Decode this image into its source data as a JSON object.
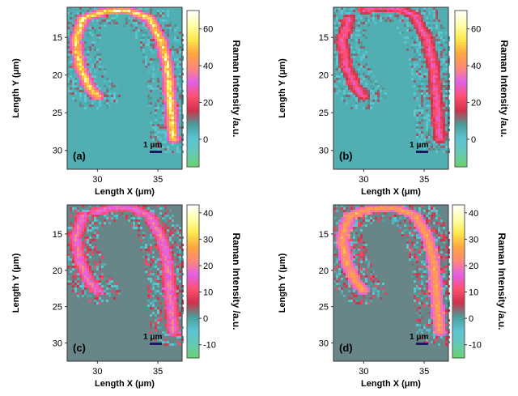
{
  "chart_data": [
    {
      "type": "heatmap",
      "panel": "(a)",
      "xlabel": "Length X (μm)",
      "ylabel": "Length Y (μm)",
      "colorbar_label": "Raman Intensity /a.u.",
      "x_ticks": [
        30,
        35
      ],
      "y_ticks": [
        15,
        20,
        25,
        30
      ],
      "colorbar_ticks": [
        0,
        20,
        40,
        60
      ],
      "xlim": [
        27.5,
        37
      ],
      "ylim": [
        32.5,
        11
      ],
      "clim": [
        -15,
        70
      ],
      "scale_bar": "1 μm",
      "feature": "U-shaped (hook) band, bright on left arm",
      "left_arm": [
        [
          28.8,
          12.5
        ],
        [
          28.2,
          15.5
        ],
        [
          28.6,
          19
        ],
        [
          29.3,
          21.5
        ],
        [
          30.0,
          22.8
        ]
      ],
      "top_arc": [
        [
          28.8,
          12.5
        ],
        [
          30.5,
          11.6
        ],
        [
          32.5,
          11.4
        ],
        [
          34.3,
          12.5
        ]
      ],
      "right_arm": [
        [
          34.3,
          12.5
        ],
        [
          35.3,
          15.5
        ],
        [
          35.8,
          19
        ],
        [
          36.0,
          23
        ],
        [
          36.2,
          27
        ],
        [
          36.3,
          28.5
        ]
      ],
      "peak": 70,
      "band_level": 25,
      "background": 5
    },
    {
      "type": "heatmap",
      "panel": "(b)",
      "xlabel": "Length X (μm)",
      "ylabel": "Length Y (μm)",
      "colorbar_label": "Raman Intensity /a.u.",
      "x_ticks": [
        30,
        35
      ],
      "y_ticks": [
        15,
        20,
        25,
        30
      ],
      "colorbar_ticks": [
        0,
        20,
        40,
        60
      ],
      "xlim": [
        27.5,
        37
      ],
      "ylim": [
        32.5,
        11
      ],
      "clim": [
        -15,
        70
      ],
      "scale_bar": "1 μm",
      "feature": "weak U-shaped outline, bright spot at top and bottom-right tip",
      "left_arm": [
        [
          28.8,
          12.5
        ],
        [
          28.2,
          15.5
        ],
        [
          28.6,
          19
        ],
        [
          29.3,
          21.5
        ],
        [
          30.0,
          22.8
        ]
      ],
      "top_arc": [
        [
          30.0,
          11.4
        ],
        [
          31.5,
          11.0
        ],
        [
          33.0,
          11.2
        ],
        [
          34.3,
          12.2
        ]
      ],
      "right_arm": [
        [
          34.3,
          12.5
        ],
        [
          35.3,
          15.5
        ],
        [
          35.8,
          19
        ],
        [
          36.0,
          23
        ],
        [
          36.2,
          27
        ],
        [
          36.3,
          28.5
        ]
      ],
      "peak": 35,
      "band_level": 12,
      "background": 5
    },
    {
      "type": "heatmap",
      "panel": "(c)",
      "xlabel": "Length X (μm)",
      "ylabel": "Length Y (μm)",
      "colorbar_label": "Raman Intensity /a.u.",
      "x_ticks": [
        30,
        35
      ],
      "y_ticks": [
        15,
        20,
        25,
        30
      ],
      "colorbar_ticks": [
        -10,
        0,
        10,
        20,
        30,
        40
      ],
      "xlim": [
        27.5,
        37
      ],
      "ylim": [
        32.5,
        11
      ],
      "clim": [
        -15,
        43
      ],
      "scale_bar": "1 μm",
      "feature": "faint U-shaped outline, strong band at top",
      "left_arm": [
        [
          28.8,
          12.5
        ],
        [
          28.2,
          15.5
        ],
        [
          28.6,
          19
        ],
        [
          29.3,
          21.5
        ],
        [
          30.0,
          22.8
        ]
      ],
      "top_arc": [
        [
          29.8,
          12.0
        ],
        [
          31.5,
          11.3
        ],
        [
          33.0,
          11.5
        ],
        [
          34.0,
          12.3
        ]
      ],
      "right_arm": [
        [
          34.3,
          12.5
        ],
        [
          35.3,
          15.5
        ],
        [
          35.8,
          19
        ],
        [
          36.0,
          23
        ],
        [
          36.2,
          27
        ],
        [
          36.3,
          28.5
        ]
      ],
      "peak": 25,
      "band_level": 8,
      "background": 2
    },
    {
      "type": "heatmap",
      "panel": "(d)",
      "xlabel": "Length X (μm)",
      "ylabel": "Length Y (μm)",
      "colorbar_label": "Raman Intensity /a.u.",
      "x_ticks": [
        30,
        35
      ],
      "y_ticks": [
        15,
        20,
        25,
        30
      ],
      "colorbar_ticks": [
        -10,
        0,
        10,
        20,
        30,
        40
      ],
      "xlim": [
        27.5,
        37
      ],
      "ylim": [
        32.5,
        11
      ],
      "clim": [
        -15,
        43
      ],
      "scale_bar": "1 μm",
      "feature": "red U-shaped band along both arms, bright tip at bottom right",
      "left_arm": [
        [
          28.8,
          12.5
        ],
        [
          28.2,
          15.5
        ],
        [
          28.6,
          19
        ],
        [
          29.3,
          21.5
        ],
        [
          30.0,
          22.8
        ]
      ],
      "top_arc": [
        [
          28.8,
          12.5
        ],
        [
          30.5,
          11.6
        ],
        [
          32.5,
          11.4
        ],
        [
          34.3,
          12.5
        ]
      ],
      "right_arm": [
        [
          34.3,
          12.5
        ],
        [
          35.3,
          15.5
        ],
        [
          35.8,
          19
        ],
        [
          36.0,
          23
        ],
        [
          36.2,
          27
        ],
        [
          36.3,
          28.5
        ]
      ],
      "peak": 30,
      "band_level": 16,
      "background": 2
    }
  ],
  "colormap": [
    "#6bd36b",
    "#66c8b6",
    "#5bc4d4",
    "#4a9e9a",
    "#d0304a",
    "#ff5070",
    "#e060e8",
    "#ff8878",
    "#ffa640",
    "#ffe84c",
    "#ffffa8",
    "#ffffff"
  ]
}
